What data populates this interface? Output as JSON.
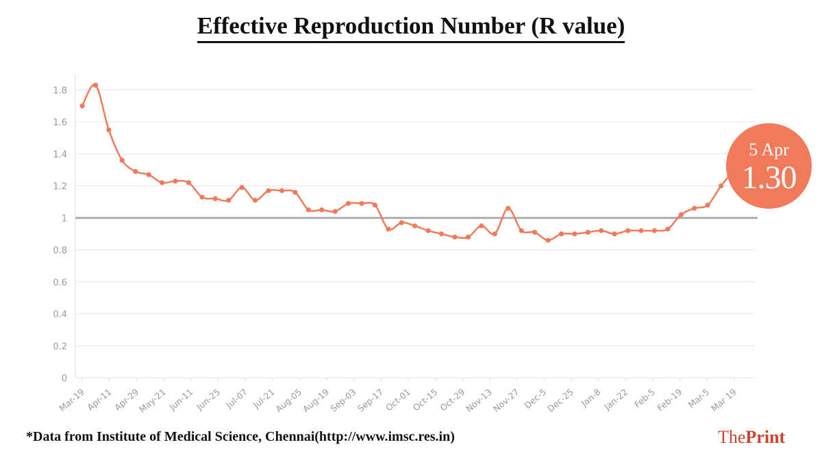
{
  "header": {
    "title": "Effective Reproduction Number (R value)"
  },
  "footer": {
    "note": "*Data from Institute of Medical Science, Chennai(http://www.imsc.res.in)",
    "logo_the": "The",
    "logo_print": "Print"
  },
  "badge": {
    "date": "5 Apr",
    "value": "1.30"
  },
  "colors": {
    "line": "#f07a5a",
    "threshold": "#b0b0b0",
    "grid": "#e6e6e6",
    "tick_text": "#999999"
  },
  "chart_data": {
    "type": "line",
    "title": "Effective Reproduction Number (R value)",
    "xlabel": "",
    "ylabel": "",
    "ylim": [
      0,
      1.9
    ],
    "yticks": [
      0,
      0.2,
      0.4,
      0.6,
      0.8,
      1,
      1.2,
      1.4,
      1.6,
      1.8
    ],
    "ytick_labels": [
      "0",
      "0.2",
      "0.4",
      "0.6",
      "0.8",
      "1",
      "1.2",
      "1.4",
      "1.6",
      "1.8"
    ],
    "x_tick_labels": [
      "Mar-19",
      "Apr-11",
      "Apr-29",
      "May-21",
      "Jun-11",
      "Jun-25",
      "Jul-07",
      "Jul-21",
      "Aug-05",
      "Aug-19",
      "Sep-03",
      "Sep-17",
      "Oct-01",
      "Oct-15",
      "Oct-29",
      "Nov-13",
      "Nov-27",
      "Dec-5",
      "Dec-25",
      "Jan-8",
      "Jan-22",
      "Feb-5",
      "Feb-19",
      "Mar-5",
      "Mar 19"
    ],
    "grid": true,
    "reference_line": 1,
    "series": [
      {
        "values": [
          1.7,
          1.83,
          1.55,
          1.36,
          1.29,
          1.27,
          1.22,
          1.23,
          1.22,
          1.13,
          1.12,
          1.11,
          1.19,
          1.11,
          1.17,
          1.17,
          1.16,
          1.05,
          1.05,
          1.04,
          1.09,
          1.09,
          1.08,
          0.93,
          0.97,
          0.95,
          0.92,
          0.9,
          0.88,
          0.88,
          0.95,
          0.9,
          1.06,
          0.92,
          0.91,
          0.86,
          0.9,
          0.9,
          0.91,
          0.92,
          0.9,
          0.92,
          0.92,
          0.92,
          0.93,
          1.02,
          1.06,
          1.08,
          1.2,
          1.3
        ]
      }
    ]
  }
}
